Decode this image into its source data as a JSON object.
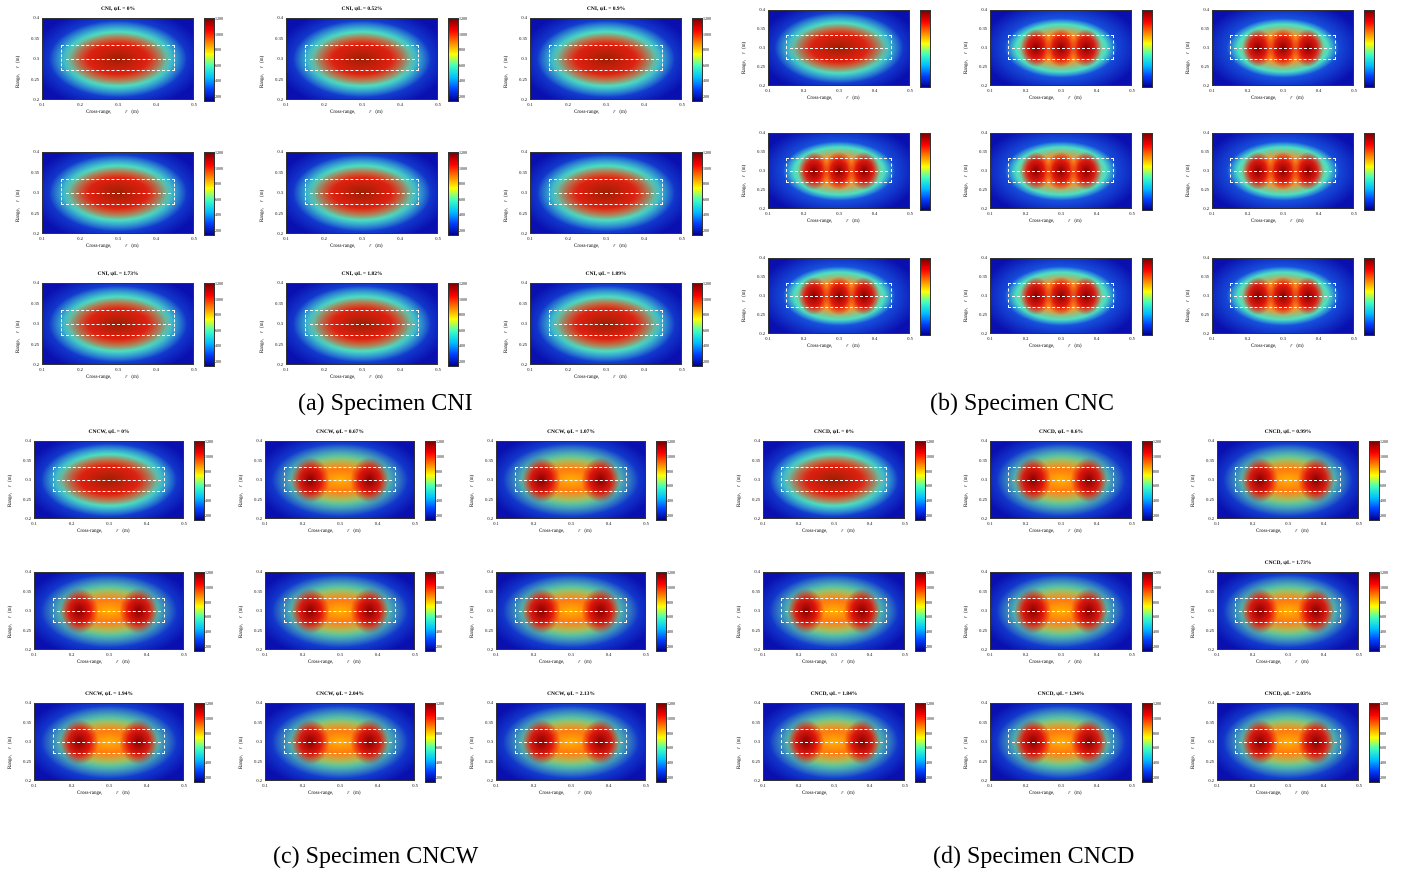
{
  "captions": {
    "a": "(a) Specimen CNI",
    "b": "(b) Specimen CNC",
    "c": "(c) Specimen CNCW",
    "d": "(d) Specimen CNCD"
  },
  "common": {
    "y_ticks": [
      "0.4",
      "0.35",
      "0.3",
      "0.25",
      "0.2"
    ],
    "x_ticks": [
      "0.1",
      "0.2",
      "0.3",
      "0.4",
      "0.5"
    ],
    "cb_ticks": [
      "1200",
      "1000",
      "800",
      "600",
      "400",
      "200"
    ],
    "xlabel_a": "Cross-range,",
    "xlabel_b": "r",
    "xlabel_c": "(m)",
    "ylabel_a": "Range,",
    "ylabel_b": "r",
    "ylabel_c": "(m)"
  },
  "chart_data": [
    {
      "type": "heatmap",
      "group": "a",
      "title": "CNI,   ψL = 0%",
      "xlim": [
        0.1,
        0.5
      ],
      "ylim": [
        0.2,
        0.4
      ],
      "clim": [
        200,
        1200
      ]
    },
    {
      "type": "heatmap",
      "group": "a",
      "title": "CNI,   ψL = 0.52%",
      "xlim": [
        0.1,
        0.5
      ],
      "ylim": [
        0.2,
        0.4
      ],
      "clim": [
        200,
        1200
      ]
    },
    {
      "type": "heatmap",
      "group": "a",
      "title": "CNI,   ψL = 0.9%",
      "xlim": [
        0.1,
        0.5
      ],
      "ylim": [
        0.2,
        0.4
      ],
      "clim": [
        200,
        1200
      ]
    },
    {
      "type": "heatmap",
      "group": "a",
      "title": "",
      "xlim": [
        0.1,
        0.5
      ],
      "ylim": [
        0.2,
        0.4
      ],
      "clim": [
        200,
        1200
      ]
    },
    {
      "type": "heatmap",
      "group": "a",
      "title": "",
      "xlim": [
        0.1,
        0.5
      ],
      "ylim": [
        0.2,
        0.4
      ],
      "clim": [
        200,
        1200
      ]
    },
    {
      "type": "heatmap",
      "group": "a",
      "title": "",
      "xlim": [
        0.1,
        0.5
      ],
      "ylim": [
        0.2,
        0.4
      ],
      "clim": [
        200,
        1200
      ]
    },
    {
      "type": "heatmap",
      "group": "a",
      "title": "CNI,   ψL = 1.73%",
      "xlim": [
        0.1,
        0.5
      ],
      "ylim": [
        0.2,
        0.4
      ],
      "clim": [
        200,
        1200
      ]
    },
    {
      "type": "heatmap",
      "group": "a",
      "title": "CNI,   ψL = 1.82%",
      "xlim": [
        0.1,
        0.5
      ],
      "ylim": [
        0.2,
        0.4
      ],
      "clim": [
        200,
        1200
      ]
    },
    {
      "type": "heatmap",
      "group": "a",
      "title": "CNI,   ψL = 1.89%",
      "xlim": [
        0.1,
        0.5
      ],
      "ylim": [
        0.2,
        0.4
      ],
      "clim": [
        200,
        1200
      ]
    },
    {
      "type": "heatmap",
      "group": "b",
      "title": "",
      "xlim": [
        0.1,
        0.5
      ],
      "ylim": [
        0.2,
        0.4
      ]
    },
    {
      "type": "heatmap",
      "group": "b",
      "title": "",
      "xlim": [
        0.1,
        0.5
      ],
      "ylim": [
        0.2,
        0.4
      ]
    },
    {
      "type": "heatmap",
      "group": "b",
      "title": "",
      "xlim": [
        0.1,
        0.5
      ],
      "ylim": [
        0.2,
        0.4
      ]
    },
    {
      "type": "heatmap",
      "group": "b",
      "title": "",
      "xlim": [
        0.1,
        0.5
      ],
      "ylim": [
        0.2,
        0.4
      ]
    },
    {
      "type": "heatmap",
      "group": "b",
      "title": "",
      "xlim": [
        0.1,
        0.5
      ],
      "ylim": [
        0.2,
        0.4
      ]
    },
    {
      "type": "heatmap",
      "group": "b",
      "title": "",
      "xlim": [
        0.1,
        0.5
      ],
      "ylim": [
        0.2,
        0.4
      ]
    },
    {
      "type": "heatmap",
      "group": "b",
      "title": "",
      "xlim": [
        0.1,
        0.5
      ],
      "ylim": [
        0.2,
        0.4
      ]
    },
    {
      "type": "heatmap",
      "group": "b",
      "title": "",
      "xlim": [
        0.1,
        0.5
      ],
      "ylim": [
        0.2,
        0.4
      ]
    },
    {
      "type": "heatmap",
      "group": "b",
      "title": "",
      "xlim": [
        0.1,
        0.5
      ],
      "ylim": [
        0.2,
        0.4
      ]
    },
    {
      "type": "heatmap",
      "group": "c",
      "title": "CNCW,   ψL = 0%",
      "xlim": [
        0.1,
        0.5
      ],
      "ylim": [
        0.2,
        0.4
      ],
      "clim": [
        200,
        1200
      ]
    },
    {
      "type": "heatmap",
      "group": "c",
      "title": "CNCW,   ψL = 0.67%",
      "xlim": [
        0.1,
        0.5
      ],
      "ylim": [
        0.2,
        0.4
      ],
      "clim": [
        200,
        1200
      ]
    },
    {
      "type": "heatmap",
      "group": "c",
      "title": "CNCW,   ψL = 1.07%",
      "xlim": [
        0.1,
        0.5
      ],
      "ylim": [
        0.2,
        0.4
      ],
      "clim": [
        200,
        1200
      ]
    },
    {
      "type": "heatmap",
      "group": "c",
      "title": "",
      "xlim": [
        0.1,
        0.5
      ],
      "ylim": [
        0.2,
        0.4
      ],
      "clim": [
        200,
        1200
      ]
    },
    {
      "type": "heatmap",
      "group": "c",
      "title": "",
      "xlim": [
        0.1,
        0.5
      ],
      "ylim": [
        0.2,
        0.4
      ],
      "clim": [
        200,
        1200
      ]
    },
    {
      "type": "heatmap",
      "group": "c",
      "title": "",
      "xlim": [
        0.1,
        0.5
      ],
      "ylim": [
        0.2,
        0.4
      ],
      "clim": [
        200,
        1200
      ]
    },
    {
      "type": "heatmap",
      "group": "c",
      "title": "CNCW,   ψL = 1.94%",
      "xlim": [
        0.1,
        0.5
      ],
      "ylim": [
        0.2,
        0.4
      ],
      "clim": [
        200,
        1200
      ]
    },
    {
      "type": "heatmap",
      "group": "c",
      "title": "CNCW,   ψL = 2.04%",
      "xlim": [
        0.1,
        0.5
      ],
      "ylim": [
        0.2,
        0.4
      ],
      "clim": [
        200,
        1200
      ]
    },
    {
      "type": "heatmap",
      "group": "c",
      "title": "CNCW,   ψL = 2.13%",
      "xlim": [
        0.1,
        0.5
      ],
      "ylim": [
        0.2,
        0.4
      ],
      "clim": [
        200,
        1200
      ]
    },
    {
      "type": "heatmap",
      "group": "d",
      "title": "CNCD,   ψL = 0%",
      "xlim": [
        0.1,
        0.5
      ],
      "ylim": [
        0.2,
        0.4
      ],
      "clim": [
        200,
        1200
      ]
    },
    {
      "type": "heatmap",
      "group": "d",
      "title": "CNCD,   ψL = 0.6%",
      "xlim": [
        0.1,
        0.5
      ],
      "ylim": [
        0.2,
        0.4
      ],
      "clim": [
        200,
        1200
      ]
    },
    {
      "type": "heatmap",
      "group": "d",
      "title": "CNCD,   ψL = 0.99%",
      "xlim": [
        0.1,
        0.5
      ],
      "ylim": [
        0.2,
        0.4
      ],
      "clim": [
        200,
        1200
      ]
    },
    {
      "type": "heatmap",
      "group": "d",
      "title": "",
      "xlim": [
        0.1,
        0.5
      ],
      "ylim": [
        0.2,
        0.4
      ],
      "clim": [
        200,
        1200
      ]
    },
    {
      "type": "heatmap",
      "group": "d",
      "title": "",
      "xlim": [
        0.1,
        0.5
      ],
      "ylim": [
        0.2,
        0.4
      ],
      "clim": [
        200,
        1200
      ]
    },
    {
      "type": "heatmap",
      "group": "d",
      "title": "CNCD,   ψL = 1.73%",
      "xlim": [
        0.1,
        0.5
      ],
      "ylim": [
        0.2,
        0.4
      ],
      "clim": [
        200,
        1200
      ]
    },
    {
      "type": "heatmap",
      "group": "d",
      "title": "CNCD,   ψL = 1.84%",
      "xlim": [
        0.1,
        0.5
      ],
      "ylim": [
        0.2,
        0.4
      ],
      "clim": [
        200,
        1200
      ]
    },
    {
      "type": "heatmap",
      "group": "d",
      "title": "CNCD,   ψL = 1.94%",
      "xlim": [
        0.1,
        0.5
      ],
      "ylim": [
        0.2,
        0.4
      ],
      "clim": [
        200,
        1200
      ]
    },
    {
      "type": "heatmap",
      "group": "d",
      "title": "CNCD,   ψL = 2.03%",
      "xlim": [
        0.1,
        0.5
      ],
      "ylim": [
        0.2,
        0.4
      ],
      "clim": [
        200,
        1200
      ]
    }
  ]
}
